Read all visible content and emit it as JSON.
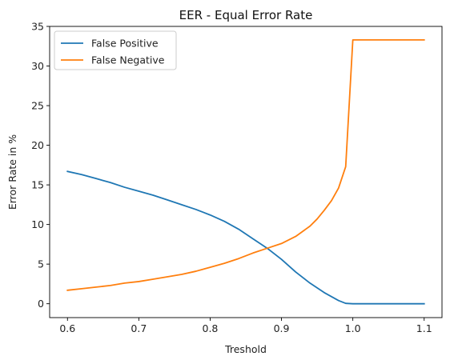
{
  "chart_data": {
    "type": "line",
    "title": "EER - Equal Error Rate",
    "xlabel": "Treshold",
    "ylabel": "Error Rate in %",
    "xlim": [
      0.575,
      1.125
    ],
    "ylim": [
      -1.75,
      35
    ],
    "x_ticks": [
      0.6,
      0.7,
      0.8,
      0.9,
      1.0,
      1.1
    ],
    "x_tick_labels": [
      "0.6",
      "0.7",
      "0.8",
      "0.9",
      "1.0",
      "1.1"
    ],
    "y_ticks": [
      0,
      5,
      10,
      15,
      20,
      25,
      30,
      35
    ],
    "y_tick_labels": [
      "0",
      "5",
      "10",
      "15",
      "20",
      "25",
      "30",
      "35"
    ],
    "grid": false,
    "legend_position": "top-left",
    "series": [
      {
        "name": "False Positive",
        "color": "#1f77b4",
        "x": [
          0.6,
          0.62,
          0.64,
          0.66,
          0.68,
          0.7,
          0.72,
          0.74,
          0.76,
          0.78,
          0.8,
          0.82,
          0.84,
          0.85,
          0.86,
          0.88,
          0.9,
          0.92,
          0.94,
          0.96,
          0.98,
          0.99,
          1.0,
          1.02,
          1.04,
          1.06,
          1.08,
          1.1
        ],
        "y": [
          16.7,
          16.3,
          15.8,
          15.3,
          14.7,
          14.2,
          13.7,
          13.1,
          12.5,
          11.9,
          11.2,
          10.4,
          9.4,
          8.8,
          8.2,
          7.0,
          5.6,
          4.0,
          2.6,
          1.4,
          0.4,
          0.05,
          0.0,
          0.0,
          0.0,
          0.0,
          0.0,
          0.0
        ]
      },
      {
        "name": "False Negative",
        "color": "#ff7f0e",
        "x": [
          0.6,
          0.62,
          0.64,
          0.66,
          0.68,
          0.7,
          0.72,
          0.74,
          0.76,
          0.78,
          0.8,
          0.82,
          0.84,
          0.86,
          0.88,
          0.9,
          0.92,
          0.94,
          0.95,
          0.96,
          0.97,
          0.98,
          0.99,
          1.0,
          1.02,
          1.04,
          1.06,
          1.08,
          1.1
        ],
        "y": [
          1.7,
          1.9,
          2.1,
          2.3,
          2.6,
          2.8,
          3.1,
          3.4,
          3.7,
          4.1,
          4.6,
          5.1,
          5.7,
          6.4,
          7.0,
          7.6,
          8.5,
          9.8,
          10.7,
          11.8,
          13.0,
          14.6,
          17.3,
          33.3,
          33.3,
          33.3,
          33.3,
          33.3,
          33.3
        ]
      }
    ]
  }
}
